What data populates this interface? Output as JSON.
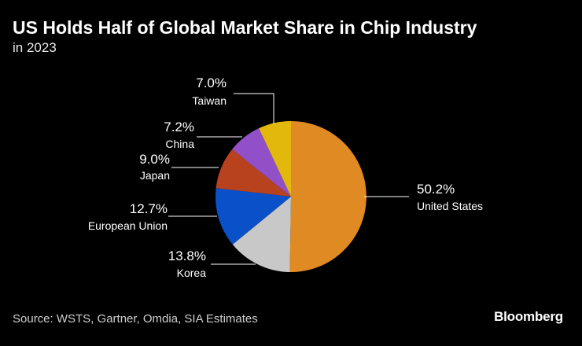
{
  "chart_data": {
    "type": "pie",
    "title": "US Holds Half of Global Market Share in Chip Industry",
    "subtitle": "in 2023",
    "slices": [
      {
        "name": "United States",
        "value": 50.2,
        "label": "50.2%",
        "color": "#E08A23"
      },
      {
        "name": "Korea",
        "value": 13.8,
        "label": "13.8%",
        "color": "#C8C8C8"
      },
      {
        "name": "European Union",
        "value": 12.7,
        "label": "12.7%",
        "color": "#0A50C8"
      },
      {
        "name": "Japan",
        "value": 9.0,
        "label": "9.0%",
        "color": "#B8421E"
      },
      {
        "name": "China",
        "value": 7.2,
        "label": "7.2%",
        "color": "#9250C8"
      },
      {
        "name": "Taiwan",
        "value": 7.0,
        "label": "7.0%",
        "color": "#E2B90A"
      }
    ]
  },
  "footer": {
    "source": "Source: WSTS, Gartner, Omdia, SIA Estimates",
    "brand": "Bloomberg"
  }
}
